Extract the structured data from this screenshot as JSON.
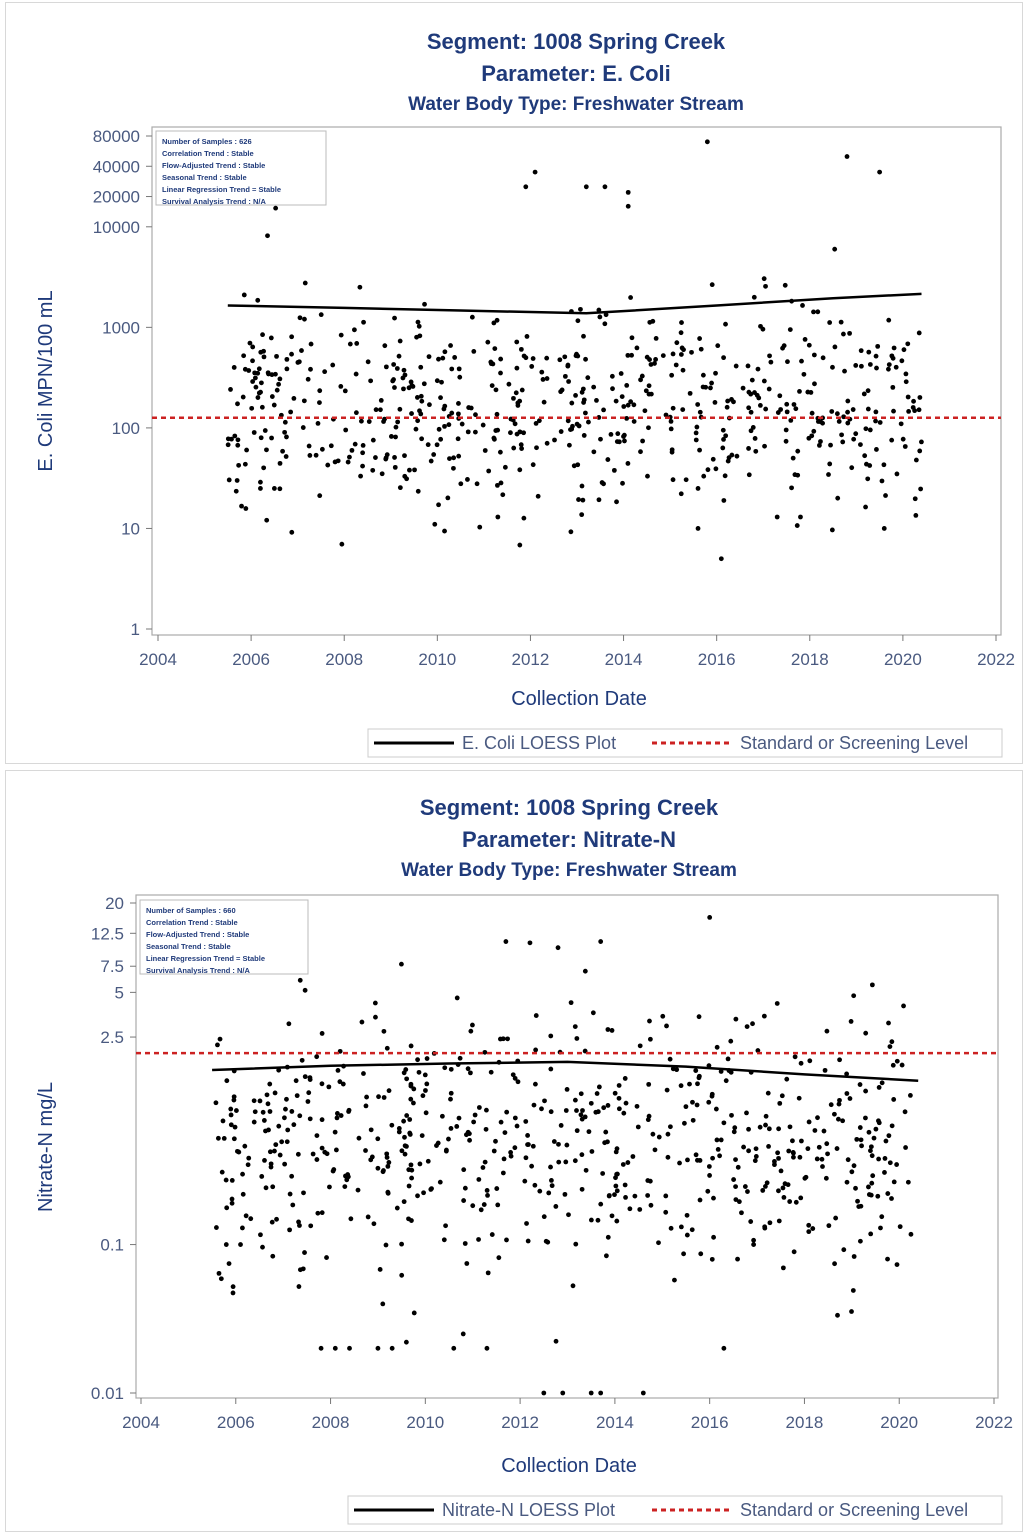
{
  "chart_data": [
    {
      "type": "scatter",
      "title": "Segment: 1008  Spring Creek",
      "subtitle": "Parameter: E. Coli",
      "subtitle2": "Water Body Type: Freshwater Stream",
      "xlabel": "Collection Date",
      "ylabel": "E. Coli  MPN/100 mL",
      "xlim": [
        2004,
        2022
      ],
      "ylim": [
        1,
        80000
      ],
      "yscale": "log",
      "xticks": [
        2004,
        2006,
        2008,
        2010,
        2012,
        2014,
        2016,
        2018,
        2020,
        2022
      ],
      "yticks": [
        1,
        10,
        100,
        1000,
        10000,
        20000,
        40000,
        80000
      ],
      "ytick_labels": [
        "1",
        "10",
        "100",
        "1000",
        "10000",
        "20000",
        "40000",
        "80000"
      ],
      "standard_level": 126,
      "loess": {
        "x": [
          2005.5,
          2008.0,
          2010.5,
          2013.2,
          2016.0,
          2018.5,
          2020.4
        ],
        "y": [
          1650,
          1560,
          1470,
          1380,
          1650,
          1950,
          2150
        ]
      },
      "legend": [
        "E. Coli LOESS Plot",
        "Standard or Screening Level"
      ],
      "legend_position": "bottom-right",
      "stats_box": [
        "Number of Samples : 626",
        "Correlation Trend : Stable",
        "Flow-Adjusted Trend : Stable",
        "Seasonal Trend : Stable",
        "Linear Regression Trend = Stable",
        "Survival Analysis Trend : N/A"
      ],
      "points": {
        "generated": true,
        "n": 626,
        "x_range": [
          2005.5,
          2020.4
        ],
        "median": 170,
        "spread_log10": 0.55,
        "y_min": 5,
        "y_max": 70000,
        "seed": 11
      },
      "notable_points": {
        "x": [
          2005.7,
          2006.2,
          2006.5,
          2009.3,
          2011.3,
          2015.6,
          2015.6,
          2016.1,
          2017.3,
          2017.8,
          2018.6,
          2019.6,
          2018.8,
          2015.8,
          2011.9,
          2012.1,
          2013.2,
          2013.6,
          2014.1,
          2014.1,
          2019.5
        ],
        "y": [
          30,
          25,
          25,
          33,
          13,
          10,
          25,
          5,
          13,
          13,
          20,
          10,
          50000,
          70000,
          25000,
          35000,
          25000,
          25000,
          22000,
          16000,
          35000
        ]
      }
    },
    {
      "type": "scatter",
      "title": "Segment: 1008  Spring Creek",
      "subtitle": "Parameter: Nitrate-N",
      "subtitle2": "Water Body Type: Freshwater Stream",
      "xlabel": "Collection Date",
      "ylabel": "Nitrate-N  mg/L",
      "xlim": [
        2004,
        2022
      ],
      "ylim": [
        0.01,
        20
      ],
      "yscale": "log",
      "xticks": [
        2004,
        2006,
        2008,
        2010,
        2012,
        2014,
        2016,
        2018,
        2020,
        2022
      ],
      "yticks": [
        0.01,
        0.1,
        2.5,
        5,
        7.5,
        12.5,
        20
      ],
      "ytick_labels": [
        "0.01",
        "0.1",
        "2.5",
        "5",
        "7.5",
        "12.5",
        "20"
      ],
      "standard_level": 1.95,
      "loess": {
        "x": [
          2005.5,
          2008.0,
          2010.5,
          2013.0,
          2015.5,
          2018.0,
          2020.4
        ],
        "y": [
          1.5,
          1.6,
          1.66,
          1.7,
          1.58,
          1.4,
          1.27
        ]
      },
      "legend": [
        "Nitrate-N LOESS Plot",
        "Standard or Screening Level"
      ],
      "legend_position": "bottom-right",
      "stats_box": [
        "Number of Samples : 660",
        "Correlation Trend : Stable",
        "Flow-Adjusted Trend : Stable",
        "Seasonal Trend : Stable",
        "Linear Regression Trend = Stable",
        "Survival Analysis Trend : N/A"
      ],
      "points": {
        "generated": true,
        "n": 660,
        "x_range": [
          2005.5,
          2020.4
        ],
        "median": 0.5,
        "spread_log10": 0.45,
        "y_min": 0.012,
        "y_max": 16,
        "seed": 29
      },
      "notable_points": {
        "x": [
          2007.8,
          2008.1,
          2008.4,
          2009.0,
          2009.3,
          2009.6,
          2010.6,
          2010.8,
          2011.3,
          2012.5,
          2012.9,
          2013.5,
          2013.7,
          2014.6,
          2016.3,
          2016.0,
          2013.7,
          2011.7,
          2012.8,
          2005.8,
          2006.1
        ],
        "y": [
          0.02,
          0.02,
          0.02,
          0.02,
          0.02,
          0.022,
          0.02,
          0.025,
          0.02,
          0.01,
          0.01,
          0.01,
          0.01,
          0.01,
          0.02,
          16,
          11,
          11,
          10,
          0.1,
          0.1
        ]
      }
    }
  ]
}
